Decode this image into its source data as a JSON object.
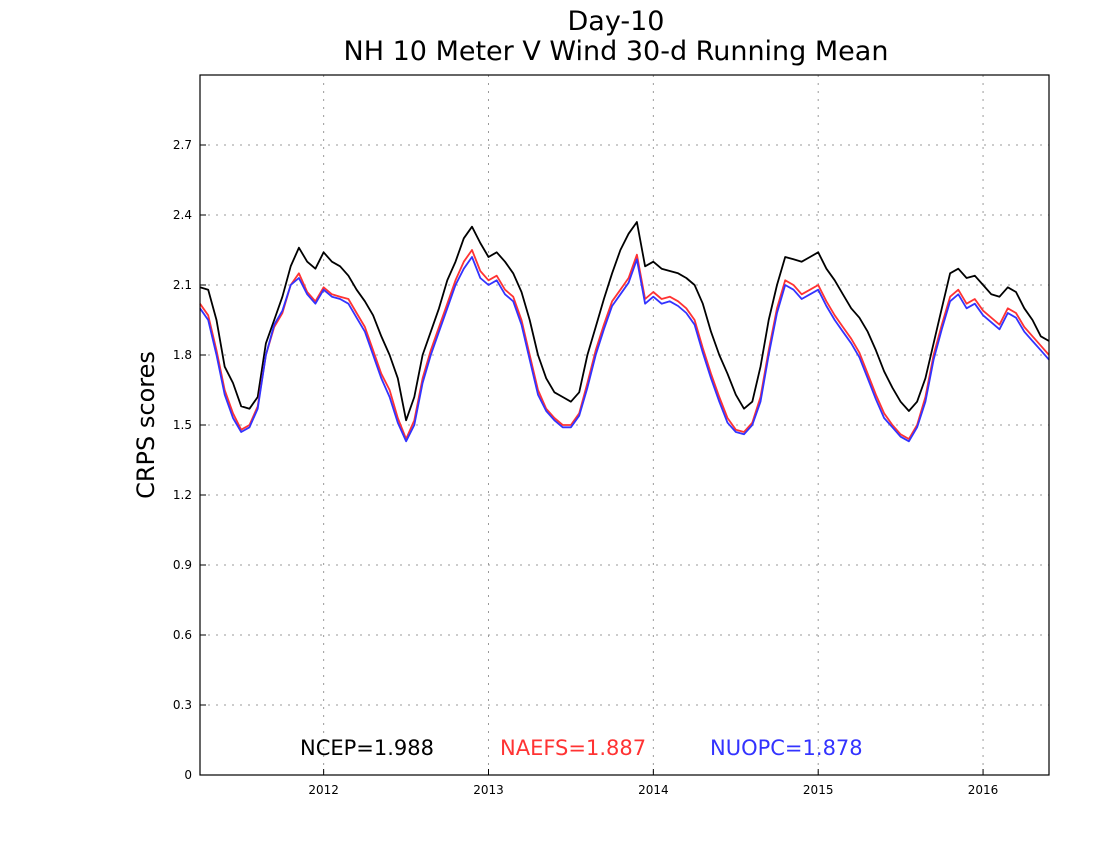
{
  "chart_data": {
    "type": "line",
    "title": "Day-10",
    "subtitle": "NH 10 Meter V Wind 30-d Running Mean",
    "xlabel": "",
    "ylabel": "CRPS scores",
    "xlim": [
      2011.25,
      2016.4
    ],
    "ylim": [
      0,
      3.0
    ],
    "yticks": [
      0,
      0.3,
      0.6,
      0.9,
      1.2,
      1.5,
      1.8,
      2.1,
      2.4,
      2.7
    ],
    "ytick_labels": [
      "0",
      "0.3",
      "0.6",
      "0.9",
      "1.2",
      "1.5",
      "1.8",
      "2.1",
      "2.4",
      "2.7"
    ],
    "xticks": [
      2012,
      2013,
      2014,
      2015,
      2016
    ],
    "xtick_labels": [
      "2012",
      "2013",
      "2014",
      "2015",
      "2016"
    ],
    "grid": true,
    "legend_position": "bottom-inside",
    "series": [
      {
        "name": "NCEP",
        "legend_label": "NCEP=1.988",
        "color": "#000000",
        "x": [
          2011.25,
          2011.3,
          2011.35,
          2011.4,
          2011.45,
          2011.5,
          2011.55,
          2011.6,
          2011.65,
          2011.7,
          2011.75,
          2011.8,
          2011.85,
          2011.9,
          2011.95,
          2012.0,
          2012.05,
          2012.1,
          2012.15,
          2012.2,
          2012.25,
          2012.3,
          2012.35,
          2012.4,
          2012.45,
          2012.5,
          2012.55,
          2012.6,
          2012.65,
          2012.7,
          2012.75,
          2012.8,
          2012.85,
          2012.9,
          2012.95,
          2013.0,
          2013.05,
          2013.1,
          2013.15,
          2013.2,
          2013.25,
          2013.3,
          2013.35,
          2013.4,
          2013.45,
          2013.5,
          2013.55,
          2013.6,
          2013.65,
          2013.7,
          2013.75,
          2013.8,
          2013.85,
          2013.9,
          2013.95,
          2014.0,
          2014.05,
          2014.1,
          2014.15,
          2014.2,
          2014.25,
          2014.3,
          2014.35,
          2014.4,
          2014.45,
          2014.5,
          2014.55,
          2014.6,
          2014.65,
          2014.7,
          2014.75,
          2014.8,
          2014.85,
          2014.9,
          2014.95,
          2015.0,
          2015.05,
          2015.1,
          2015.15,
          2015.2,
          2015.25,
          2015.3,
          2015.35,
          2015.4,
          2015.45,
          2015.5,
          2015.55,
          2015.6,
          2015.65,
          2015.7,
          2015.75,
          2015.8,
          2015.85,
          2015.9,
          2015.95,
          2016.0,
          2016.05,
          2016.1,
          2016.15,
          2016.2,
          2016.25,
          2016.3,
          2016.35,
          2016.4
        ],
        "values": [
          2.09,
          2.08,
          1.95,
          1.75,
          1.68,
          1.58,
          1.57,
          1.62,
          1.85,
          1.95,
          2.05,
          2.18,
          2.26,
          2.2,
          2.17,
          2.24,
          2.2,
          2.18,
          2.14,
          2.08,
          2.03,
          1.97,
          1.88,
          1.8,
          1.7,
          1.52,
          1.62,
          1.8,
          1.9,
          2.0,
          2.12,
          2.2,
          2.3,
          2.35,
          2.28,
          2.22,
          2.24,
          2.2,
          2.15,
          2.07,
          1.95,
          1.8,
          1.7,
          1.64,
          1.62,
          1.6,
          1.64,
          1.8,
          1.92,
          2.04,
          2.15,
          2.25,
          2.32,
          2.37,
          2.18,
          2.2,
          2.17,
          2.16,
          2.15,
          2.13,
          2.1,
          2.02,
          1.9,
          1.8,
          1.72,
          1.63,
          1.57,
          1.6,
          1.75,
          1.95,
          2.1,
          2.22,
          2.21,
          2.2,
          2.22,
          2.24,
          2.17,
          2.12,
          2.06,
          2.0,
          1.96,
          1.9,
          1.82,
          1.73,
          1.66,
          1.6,
          1.56,
          1.6,
          1.7,
          1.85,
          2.0,
          2.15,
          2.17,
          2.13,
          2.14,
          2.1,
          2.06,
          2.05,
          2.09,
          2.07,
          2.0,
          1.95,
          1.88,
          1.86
        ]
      },
      {
        "name": "NAEFS",
        "legend_label": "NAEFS=1.887",
        "color": "#ff3333",
        "x": [
          2011.25,
          2011.3,
          2011.35,
          2011.4,
          2011.45,
          2011.5,
          2011.55,
          2011.6,
          2011.65,
          2011.7,
          2011.75,
          2011.8,
          2011.85,
          2011.9,
          2011.95,
          2012.0,
          2012.05,
          2012.1,
          2012.15,
          2012.2,
          2012.25,
          2012.3,
          2012.35,
          2012.4,
          2012.45,
          2012.5,
          2012.55,
          2012.6,
          2012.65,
          2012.7,
          2012.75,
          2012.8,
          2012.85,
          2012.9,
          2012.95,
          2013.0,
          2013.05,
          2013.1,
          2013.15,
          2013.2,
          2013.25,
          2013.3,
          2013.35,
          2013.4,
          2013.45,
          2013.5,
          2013.55,
          2013.6,
          2013.65,
          2013.7,
          2013.75,
          2013.8,
          2013.85,
          2013.9,
          2013.95,
          2014.0,
          2014.05,
          2014.1,
          2014.15,
          2014.2,
          2014.25,
          2014.3,
          2014.35,
          2014.4,
          2014.45,
          2014.5,
          2014.55,
          2014.6,
          2014.65,
          2014.7,
          2014.75,
          2014.8,
          2014.85,
          2014.9,
          2014.95,
          2015.0,
          2015.05,
          2015.1,
          2015.15,
          2015.2,
          2015.25,
          2015.3,
          2015.35,
          2015.4,
          2015.45,
          2015.5,
          2015.55,
          2015.6,
          2015.65,
          2015.7,
          2015.75,
          2015.8,
          2015.85,
          2015.9,
          2015.95,
          2016.0,
          2016.05,
          2016.1,
          2016.15,
          2016.2,
          2016.25,
          2016.3,
          2016.35,
          2016.4
        ],
        "values": [
          2.02,
          1.97,
          1.82,
          1.65,
          1.55,
          1.48,
          1.5,
          1.58,
          1.8,
          1.92,
          1.98,
          2.1,
          2.15,
          2.07,
          2.03,
          2.09,
          2.06,
          2.05,
          2.04,
          1.98,
          1.92,
          1.82,
          1.72,
          1.65,
          1.53,
          1.44,
          1.52,
          1.7,
          1.82,
          1.92,
          2.02,
          2.12,
          2.2,
          2.25,
          2.16,
          2.12,
          2.14,
          2.08,
          2.05,
          1.95,
          1.8,
          1.65,
          1.57,
          1.53,
          1.5,
          1.5,
          1.55,
          1.68,
          1.82,
          1.93,
          2.03,
          2.08,
          2.13,
          2.23,
          2.04,
          2.07,
          2.04,
          2.05,
          2.03,
          2.0,
          1.95,
          1.83,
          1.72,
          1.62,
          1.53,
          1.48,
          1.47,
          1.51,
          1.62,
          1.82,
          2.0,
          2.12,
          2.1,
          2.06,
          2.08,
          2.1,
          2.03,
          1.97,
          1.92,
          1.87,
          1.81,
          1.72,
          1.63,
          1.55,
          1.5,
          1.46,
          1.44,
          1.5,
          1.62,
          1.8,
          1.93,
          2.05,
          2.08,
          2.02,
          2.04,
          1.99,
          1.96,
          1.93,
          2.0,
          1.98,
          1.92,
          1.88,
          1.84,
          1.8
        ]
      },
      {
        "name": "NUOPC",
        "legend_label": "NUOPC=1.878",
        "color": "#3333ff",
        "x": [
          2011.25,
          2011.3,
          2011.35,
          2011.4,
          2011.45,
          2011.5,
          2011.55,
          2011.6,
          2011.65,
          2011.7,
          2011.75,
          2011.8,
          2011.85,
          2011.9,
          2011.95,
          2012.0,
          2012.05,
          2012.1,
          2012.15,
          2012.2,
          2012.25,
          2012.3,
          2012.35,
          2012.4,
          2012.45,
          2012.5,
          2012.55,
          2012.6,
          2012.65,
          2012.7,
          2012.75,
          2012.8,
          2012.85,
          2012.9,
          2012.95,
          2013.0,
          2013.05,
          2013.1,
          2013.15,
          2013.2,
          2013.25,
          2013.3,
          2013.35,
          2013.4,
          2013.45,
          2013.5,
          2013.55,
          2013.6,
          2013.65,
          2013.7,
          2013.75,
          2013.8,
          2013.85,
          2013.9,
          2013.95,
          2014.0,
          2014.05,
          2014.1,
          2014.15,
          2014.2,
          2014.25,
          2014.3,
          2014.35,
          2014.4,
          2014.45,
          2014.5,
          2014.55,
          2014.6,
          2014.65,
          2014.7,
          2014.75,
          2014.8,
          2014.85,
          2014.9,
          2014.95,
          2015.0,
          2015.05,
          2015.1,
          2015.15,
          2015.2,
          2015.25,
          2015.3,
          2015.35,
          2015.4,
          2015.45,
          2015.5,
          2015.55,
          2015.6,
          2015.65,
          2015.7,
          2015.75,
          2015.8,
          2015.85,
          2015.9,
          2015.95,
          2016.0,
          2016.05,
          2016.1,
          2016.15,
          2016.2,
          2016.25,
          2016.3,
          2016.35,
          2016.4
        ],
        "values": [
          2.0,
          1.95,
          1.8,
          1.63,
          1.53,
          1.47,
          1.49,
          1.57,
          1.8,
          1.93,
          1.99,
          2.1,
          2.13,
          2.06,
          2.02,
          2.08,
          2.05,
          2.04,
          2.02,
          1.96,
          1.9,
          1.8,
          1.7,
          1.62,
          1.51,
          1.43,
          1.5,
          1.68,
          1.8,
          1.9,
          2.0,
          2.1,
          2.17,
          2.22,
          2.13,
          2.1,
          2.12,
          2.06,
          2.03,
          1.93,
          1.78,
          1.63,
          1.56,
          1.52,
          1.49,
          1.49,
          1.54,
          1.66,
          1.8,
          1.91,
          2.01,
          2.06,
          2.11,
          2.21,
          2.02,
          2.05,
          2.02,
          2.03,
          2.01,
          1.98,
          1.93,
          1.81,
          1.7,
          1.6,
          1.51,
          1.47,
          1.46,
          1.5,
          1.6,
          1.8,
          1.98,
          2.1,
          2.08,
          2.04,
          2.06,
          2.08,
          2.01,
          1.95,
          1.9,
          1.85,
          1.79,
          1.7,
          1.61,
          1.53,
          1.49,
          1.45,
          1.43,
          1.49,
          1.6,
          1.78,
          1.91,
          2.03,
          2.06,
          2.0,
          2.02,
          1.97,
          1.94,
          1.91,
          1.98,
          1.96,
          1.9,
          1.86,
          1.82,
          1.78
        ]
      }
    ]
  }
}
